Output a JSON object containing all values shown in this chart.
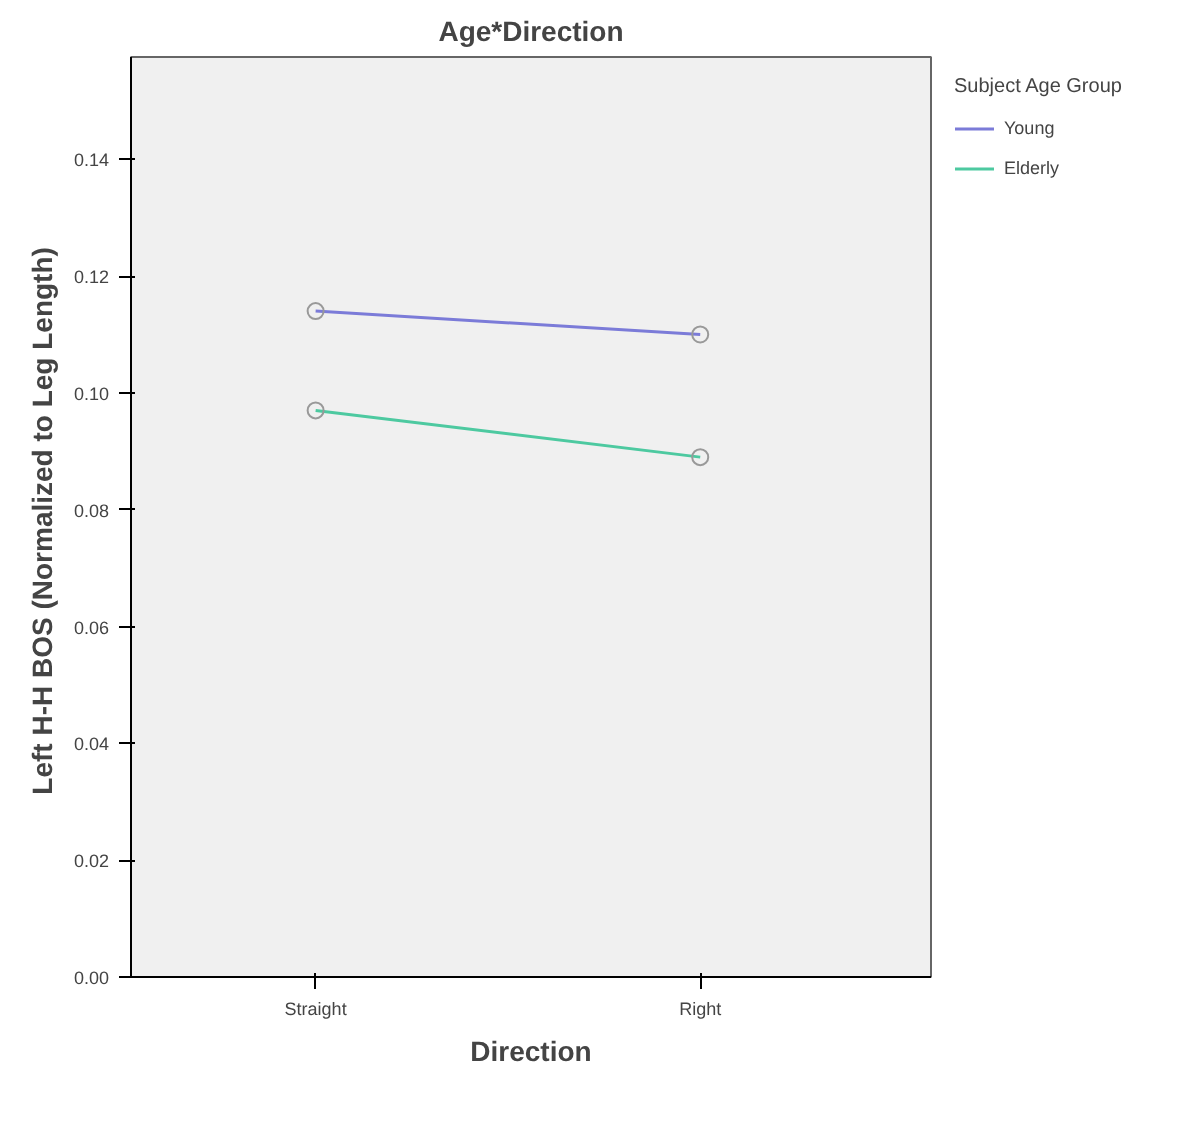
{
  "chart_data": {
    "type": "line",
    "title": "Age*Direction",
    "xlabel": "Direction",
    "ylabel": "Left  H-H BOS (Normalized to Leg Length)",
    "legend_title": "Subject Age Group",
    "categories": [
      "Straight",
      "Right"
    ],
    "series": [
      {
        "name": "Young",
        "color": "#7b7bd8",
        "values": [
          0.114,
          0.11
        ]
      },
      {
        "name": "Elderly",
        "color": "#4dc9a0",
        "values": [
          0.097,
          0.089
        ]
      }
    ],
    "ylim": [
      0,
      0.1575
    ],
    "yticks": [
      {
        "value": 0,
        "label": "0.00"
      },
      {
        "value": 0.02,
        "label": "0.02"
      },
      {
        "value": 0.04,
        "label": "0.04"
      },
      {
        "value": 0.06,
        "label": "0.06"
      },
      {
        "value": 0.08,
        "label": "0.08"
      },
      {
        "value": 0.1,
        "label": "0.10"
      },
      {
        "value": 0.12,
        "label": "0.12"
      },
      {
        "value": 0.14,
        "label": "0.14"
      }
    ],
    "grid": false,
    "legend": "top right",
    "marker": "circle",
    "line_style": "solid"
  }
}
